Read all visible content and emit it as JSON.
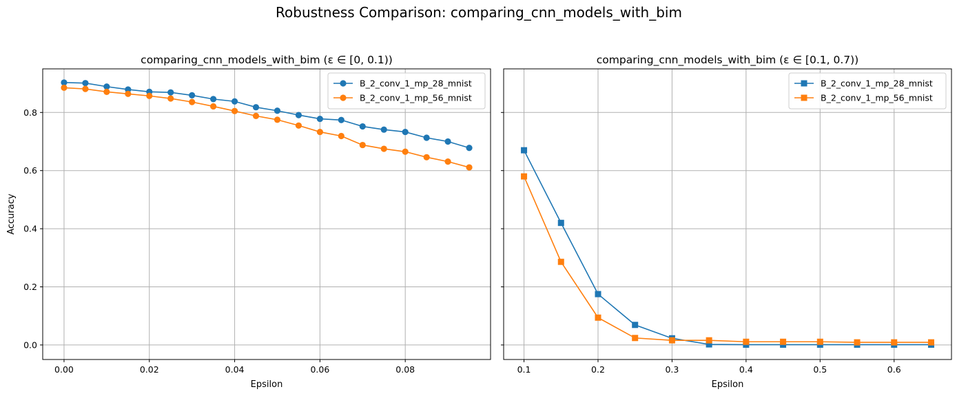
{
  "figure": {
    "suptitle": "Robustness Comparison: comparing_cnn_models_with_bim"
  },
  "colors": {
    "series1": "#1f77b4",
    "series2": "#ff7f0e",
    "grid": "#b0b0b0",
    "axes": "#000000"
  },
  "chart_data": [
    {
      "type": "line",
      "title": "comparing_cnn_models_with_bim (ε ∈ [0, 0.1))",
      "xlabel": "Epsilon",
      "ylabel": "Accuracy",
      "marker": "circle",
      "grid": true,
      "legend_position": "top-right",
      "xlim": [
        -0.005,
        0.1
      ],
      "ylim": [
        -0.05,
        0.95
      ],
      "xticks": [
        0.0,
        0.02,
        0.04,
        0.06,
        0.08
      ],
      "xtick_labels": [
        "0.00",
        "0.02",
        "0.04",
        "0.06",
        "0.08"
      ],
      "yticks": [
        0.0,
        0.2,
        0.4,
        0.6,
        0.8
      ],
      "ytick_labels": [
        "0.0",
        "0.2",
        "0.4",
        "0.6",
        "0.8"
      ],
      "x": [
        0.0,
        0.005,
        0.01,
        0.015,
        0.02,
        0.025,
        0.03,
        0.035,
        0.04,
        0.045,
        0.05,
        0.055,
        0.06,
        0.065,
        0.07,
        0.075,
        0.08,
        0.085,
        0.09,
        0.095
      ],
      "series": [
        {
          "name": "B_2_conv_1_mp_28_mnist",
          "color": "#1f77b4",
          "values": [
            0.903,
            0.901,
            0.889,
            0.879,
            0.871,
            0.869,
            0.859,
            0.846,
            0.838,
            0.818,
            0.806,
            0.791,
            0.778,
            0.774,
            0.752,
            0.741,
            0.733,
            0.713,
            0.7,
            0.678
          ]
        },
        {
          "name": "B_2_conv_1_mp_56_mnist",
          "color": "#ff7f0e",
          "values": [
            0.885,
            0.881,
            0.871,
            0.864,
            0.857,
            0.848,
            0.836,
            0.821,
            0.805,
            0.788,
            0.775,
            0.755,
            0.733,
            0.719,
            0.688,
            0.675,
            0.665,
            0.646,
            0.631,
            0.611
          ]
        }
      ]
    },
    {
      "type": "line",
      "title": "comparing_cnn_models_with_bim (ε ∈ [0.1, 0.7))",
      "xlabel": "Epsilon",
      "ylabel": "",
      "marker": "square",
      "grid": true,
      "legend_position": "top-right",
      "xlim": [
        0.0725,
        0.6775
      ],
      "ylim": [
        -0.05,
        0.95
      ],
      "xticks": [
        0.1,
        0.2,
        0.3,
        0.4,
        0.5,
        0.6
      ],
      "xtick_labels": [
        "0.1",
        "0.2",
        "0.3",
        "0.4",
        "0.5",
        "0.6"
      ],
      "yticks": [
        0.0,
        0.2,
        0.4,
        0.6,
        0.8
      ],
      "ytick_labels": [],
      "x": [
        0.1,
        0.15,
        0.2,
        0.25,
        0.3,
        0.35,
        0.4,
        0.45,
        0.5,
        0.55,
        0.6,
        0.65
      ],
      "series": [
        {
          "name": "B_2_conv_1_mp_28_mnist",
          "color": "#1f77b4",
          "values": [
            0.67,
            0.42,
            0.175,
            0.069,
            0.023,
            0.002,
            0.001,
            0.001,
            0.001,
            0.001,
            0.001,
            0.001
          ]
        },
        {
          "name": "B_2_conv_1_mp_56_mnist",
          "color": "#ff7f0e",
          "values": [
            0.58,
            0.286,
            0.094,
            0.024,
            0.016,
            0.016,
            0.011,
            0.011,
            0.011,
            0.009,
            0.009,
            0.009
          ]
        }
      ]
    }
  ]
}
